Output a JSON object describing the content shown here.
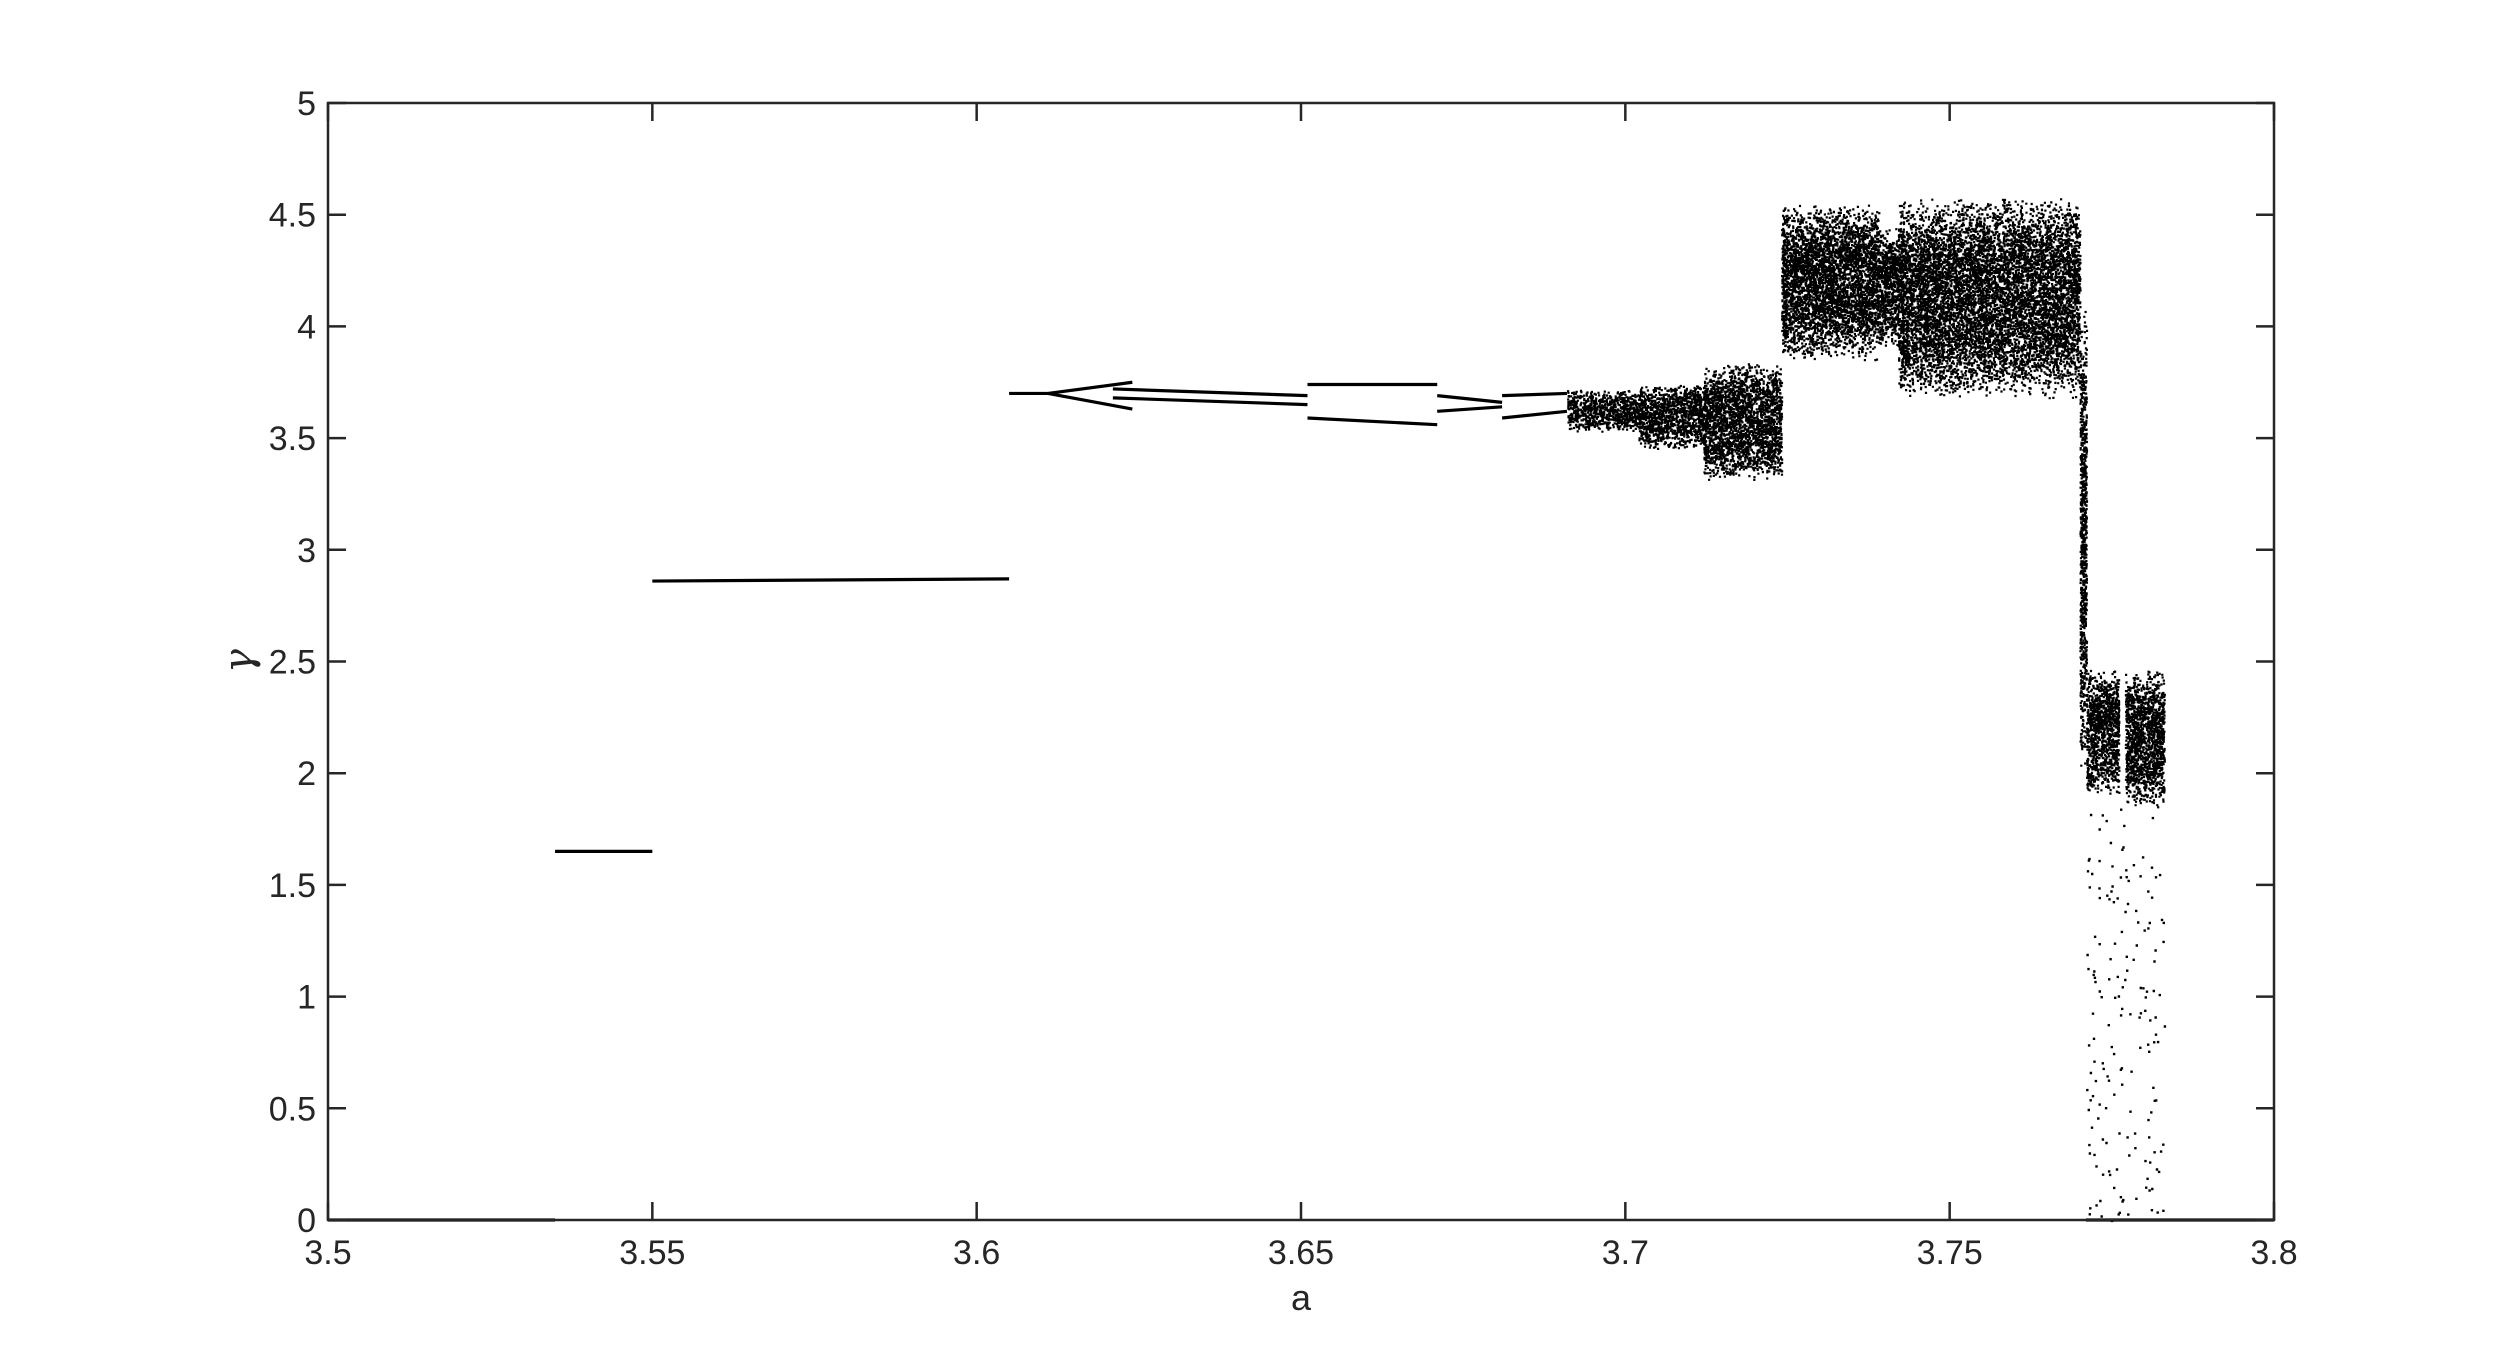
{
  "chart_data": {
    "type": "scatter",
    "title": "",
    "xlabel": "a",
    "ylabel": "γ",
    "xlim": [
      3.5,
      3.8
    ],
    "ylim": [
      0,
      5
    ],
    "grid": false,
    "xticks": [
      "3.5",
      "3.55",
      "3.6",
      "3.65",
      "3.7",
      "3.75",
      "3.8"
    ],
    "yticks": [
      "0",
      "0.5",
      "1",
      "1.5",
      "2",
      "2.5",
      "3",
      "3.5",
      "4",
      "4.5",
      "5"
    ],
    "marker_color": "#000000",
    "segments": [
      {
        "a": [
          3.5,
          3.535
        ],
        "y": [
          0.0,
          0.0
        ]
      },
      {
        "a": [
          3.535,
          3.55
        ],
        "y": [
          1.65,
          1.65
        ]
      },
      {
        "a": [
          3.55,
          3.605
        ],
        "y": [
          2.86,
          2.87
        ]
      },
      {
        "a": [
          3.605,
          3.611
        ],
        "y": [
          3.7,
          3.7
        ]
      },
      {
        "a": [
          3.611,
          3.624
        ],
        "y": [
          3.7,
          3.75
        ]
      },
      {
        "a": [
          3.611,
          3.624
        ],
        "y": [
          3.7,
          3.63
        ]
      },
      {
        "a": [
          3.621,
          3.651
        ],
        "y": [
          3.72,
          3.69
        ]
      },
      {
        "a": [
          3.621,
          3.651
        ],
        "y": [
          3.68,
          3.65
        ]
      },
      {
        "a": [
          3.651,
          3.671
        ],
        "y": [
          3.74,
          3.74
        ]
      },
      {
        "a": [
          3.651,
          3.671
        ],
        "y": [
          3.59,
          3.56
        ]
      },
      {
        "a": [
          3.671,
          3.681
        ],
        "y": [
          3.69,
          3.66
        ]
      },
      {
        "a": [
          3.671,
          3.681
        ],
        "y": [
          3.62,
          3.64
        ]
      },
      {
        "a": [
          3.681,
          3.691
        ],
        "y": [
          3.69,
          3.7
        ]
      },
      {
        "a": [
          3.681,
          3.691
        ],
        "y": [
          3.59,
          3.62
        ]
      },
      {
        "a": [
          3.771,
          3.8
        ],
        "y": [
          0.0,
          0.0
        ]
      }
    ],
    "bands": [
      {
        "a": [
          3.691,
          3.702
        ],
        "y": [
          3.53,
          3.72
        ]
      },
      {
        "a": [
          3.702,
          3.712
        ],
        "y": [
          3.45,
          3.75
        ]
      },
      {
        "a": [
          3.712,
          3.724
        ],
        "y": [
          3.31,
          3.84
        ]
      },
      {
        "a": [
          3.724,
          3.739
        ],
        "y": [
          3.85,
          4.55
        ]
      },
      {
        "a": [
          3.739,
          3.742
        ],
        "y": [
          3.9,
          4.45
        ]
      },
      {
        "a": [
          3.742,
          3.77
        ],
        "y": [
          3.68,
          4.58
        ]
      },
      {
        "a": [
          3.77,
          3.771
        ],
        "y": [
          2.0,
          4.1
        ]
      },
      {
        "a": [
          3.771,
          3.776
        ],
        "y": [
          1.9,
          2.47
        ]
      },
      {
        "a": [
          3.777,
          3.783
        ],
        "y": [
          1.85,
          2.47
        ]
      }
    ],
    "sparse_region": {
      "a": [
        3.771,
        3.783
      ],
      "y": [
        0.0,
        1.85
      ]
    }
  }
}
